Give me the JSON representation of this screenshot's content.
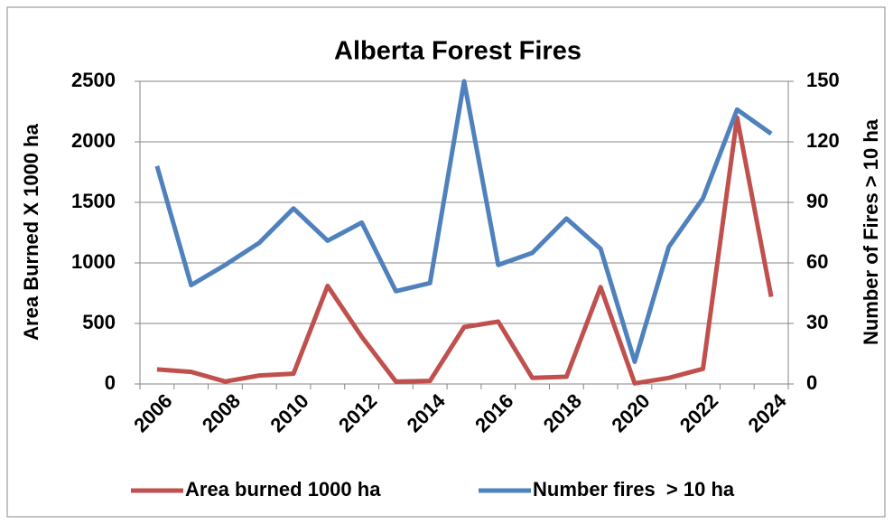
{
  "chart_data": {
    "type": "line",
    "title": "Alberta Forest Fires",
    "y_label": "Area Burned X 1000 ha",
    "y2_label": "Number of Fires > 10 ha",
    "categories": [
      "2006",
      null,
      "2008",
      null,
      "2010",
      null,
      "2012",
      null,
      "2014",
      null,
      "2016",
      null,
      "2018",
      null,
      "2020",
      null,
      "2022",
      null,
      "2024"
    ],
    "series": [
      {
        "name": "Area burned 1000 ha",
        "color": "#c0504d",
        "values": [
          120,
          100,
          20,
          70,
          85,
          810,
          390,
          20,
          25,
          470,
          515,
          50,
          60,
          800,
          5,
          50,
          125,
          2200,
          720
        ]
      },
      {
        "name": "Number fires  > 10 ha",
        "color": "#4f81bd",
        "axis": "y2",
        "values": [
          108,
          49,
          59,
          70,
          87,
          71,
          80,
          46,
          50,
          150,
          59,
          65,
          82,
          67,
          11,
          68,
          92,
          136,
          124
        ]
      }
    ],
    "ylim": [
      0,
      2500
    ],
    "yticks": [
      0,
      500,
      1000,
      1500,
      2000,
      2500
    ],
    "y2lim": [
      0,
      150
    ],
    "y2ticks": [
      0,
      30,
      60,
      90,
      120,
      150
    ],
    "grid": true,
    "legend": "bottom"
  }
}
